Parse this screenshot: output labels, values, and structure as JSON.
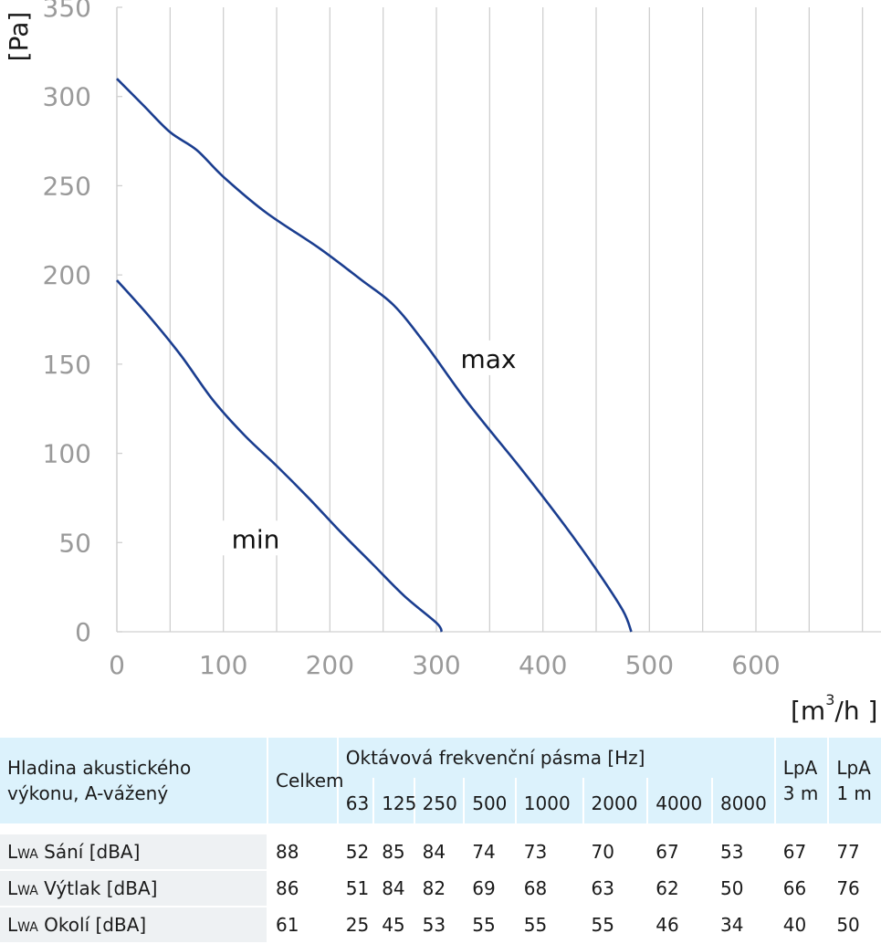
{
  "chart_data": {
    "type": "line",
    "ylabel": "[Pa]",
    "xlabel_base": "[m",
    "xlabel_sup": "3",
    "xlabel_tail": "/h ]",
    "xlim": [
      0,
      600
    ],
    "ylim": [
      0,
      350
    ],
    "xticks": [
      0,
      100,
      200,
      300,
      400,
      500,
      600
    ],
    "yticks": [
      0,
      50,
      100,
      150,
      200,
      250,
      300,
      350
    ],
    "grid": true,
    "series": [
      {
        "name": "max",
        "color": "#1a3d8f",
        "x": [
          0,
          25,
          50,
          75,
          100,
          140,
          190,
          230,
          260,
          290,
          330,
          380,
          420,
          450,
          475,
          483
        ],
        "y": [
          310,
          295,
          280,
          270,
          255,
          235,
          215,
          197,
          183,
          161,
          128,
          91,
          60,
          35,
          12,
          0
        ]
      },
      {
        "name": "min",
        "color": "#1a3d8f",
        "x": [
          0,
          30,
          60,
          90,
          120,
          150,
          180,
          210,
          240,
          270,
          300,
          305
        ],
        "y": [
          197,
          177,
          155,
          130,
          110,
          93,
          75,
          56,
          38,
          20,
          5,
          0
        ]
      }
    ]
  },
  "table": {
    "header_label": "Hladina akustického výkonu, A-vážený",
    "header_total": "Celkem",
    "header_octave": "Oktávová frekvenční pásma [Hz]",
    "header_lpa3": "LpA 3 m",
    "header_lpa1": "LpA 1 m",
    "frequencies": [
      "63",
      "125",
      "250",
      "500",
      "1000",
      "2000",
      "4000",
      "8000"
    ],
    "rows": [
      {
        "prefix": "L",
        "sub": "WA",
        "label": " Sání [dBA]",
        "values": [
          "88",
          "52",
          "85",
          "84",
          "74",
          "73",
          "70",
          "67",
          "53",
          "67",
          "77"
        ]
      },
      {
        "prefix": "L",
        "sub": "WA",
        "label": " Výtlak [dBA]",
        "values": [
          "86",
          "51",
          "84",
          "82",
          "69",
          "68",
          "63",
          "62",
          "50",
          "66",
          "76"
        ]
      },
      {
        "prefix": "L",
        "sub": "WA",
        "label": " Okolí [dBA]",
        "values": [
          "61",
          "25",
          "45",
          "53",
          "55",
          "55",
          "55",
          "46",
          "34",
          "40",
          "50"
        ]
      }
    ]
  }
}
